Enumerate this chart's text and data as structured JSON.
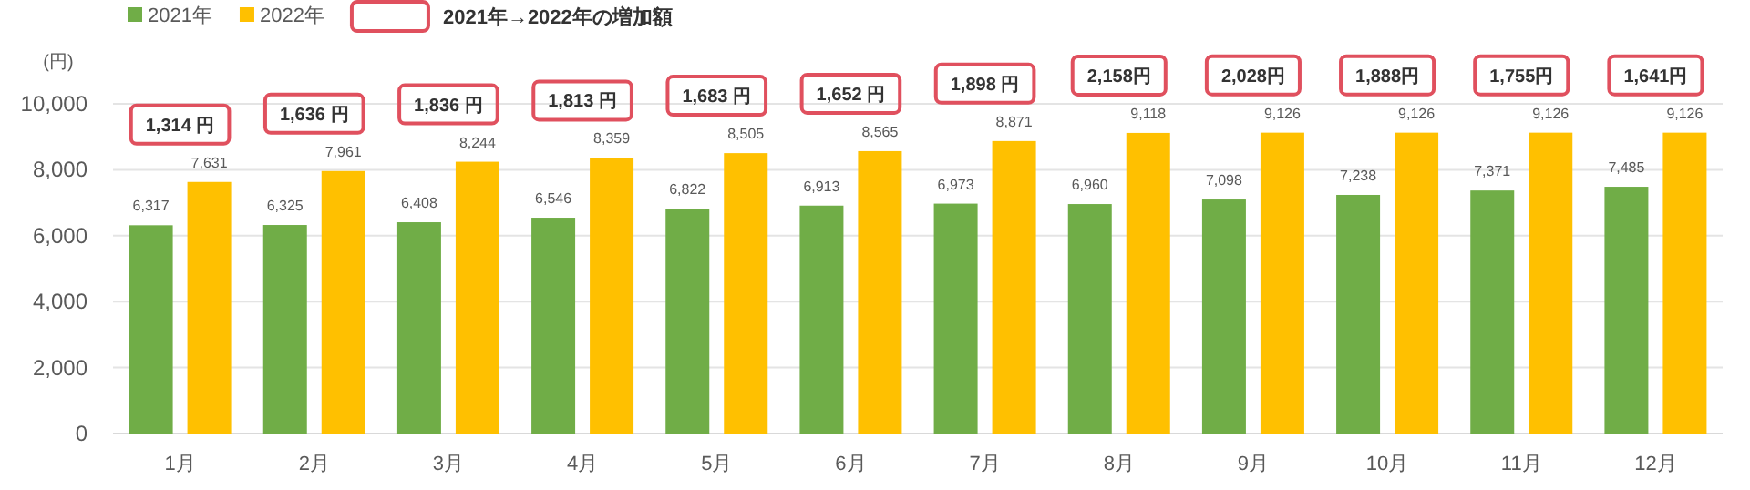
{
  "chart_data": {
    "type": "bar",
    "ylabel": "(円)",
    "categories": [
      "1月",
      "2月",
      "3月",
      "4月",
      "5月",
      "6月",
      "7月",
      "8月",
      "9月",
      "10月",
      "11月",
      "12月"
    ],
    "series": [
      {
        "name": "2021年",
        "color": "#70ad47",
        "values": [
          6317,
          6325,
          6408,
          6546,
          6822,
          6913,
          6973,
          6960,
          7098,
          7238,
          7371,
          7485
        ],
        "value_labels": [
          "6,317",
          "6,325",
          "6,408",
          "6,546",
          "6,822",
          "6,913",
          "6,973",
          "6,960",
          "7,098",
          "7,238",
          "7,371",
          "7,485"
        ]
      },
      {
        "name": "2022年",
        "color": "#ffc000",
        "values": [
          7631,
          7961,
          8244,
          8359,
          8505,
          8565,
          8871,
          9118,
          9126,
          9126,
          9126,
          9126
        ],
        "value_labels": [
          "7,631",
          "7,961",
          "8,244",
          "8,359",
          "8,505",
          "8,565",
          "8,871",
          "9,118",
          "9,126",
          "9,126",
          "9,126",
          "9,126"
        ]
      }
    ],
    "ylim": [
      0,
      10000
    ],
    "yticks": [
      {
        "value": 0,
        "label": "0"
      },
      {
        "value": 2000,
        "label": "2,000"
      },
      {
        "value": 4000,
        "label": "4,000"
      },
      {
        "value": 6000,
        "label": "6,000"
      },
      {
        "value": 8000,
        "label": "8,000"
      },
      {
        "value": 10000,
        "label": "10,000"
      }
    ],
    "grid": "y",
    "legend": "top left",
    "annotations": [
      "2021年→2022年の増加額",
      "1,314 円",
      "1,636 円",
      "1,836 円",
      "1,813 円",
      "1,683 円",
      "1,652 円",
      "1,898 円",
      "2,158円",
      "2,028円",
      "1,888円",
      "1,755円",
      "1,641円"
    ]
  }
}
